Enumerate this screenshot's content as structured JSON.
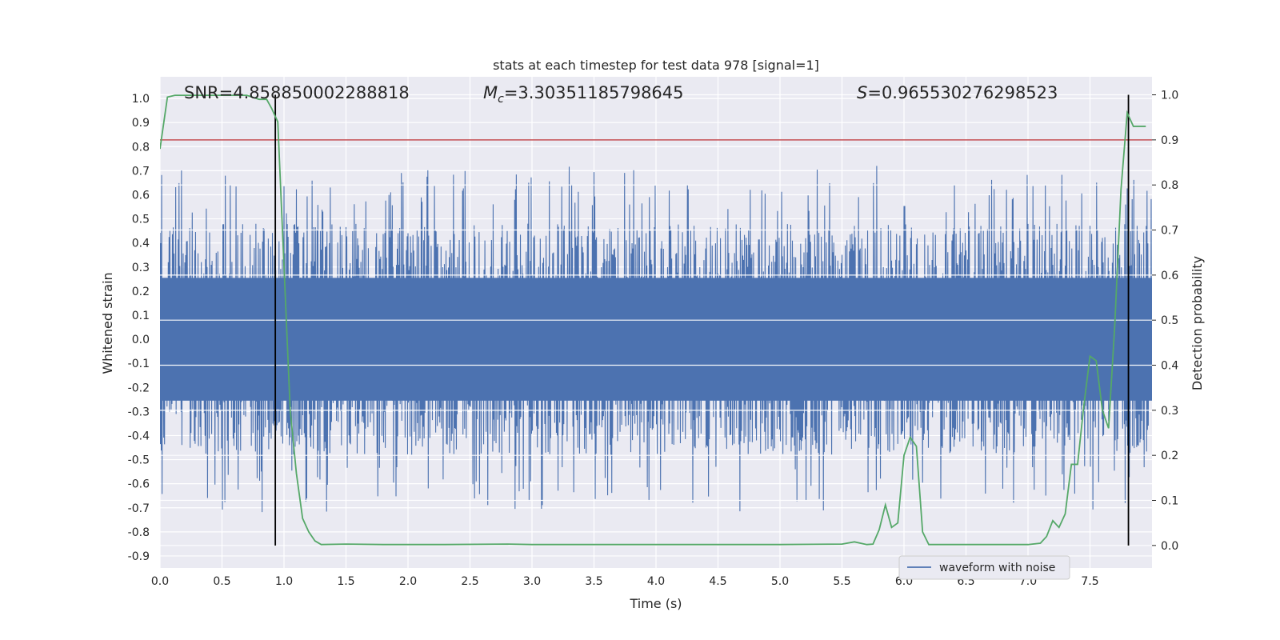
{
  "chart_data": {
    "type": "line",
    "title": "stats at each timestep for test data 978 [signal=1]",
    "xlabel": "Time (s)",
    "ylabel_left": "Whitened strain",
    "ylabel_right": "Detection probability",
    "xlim": [
      0.0,
      8.0
    ],
    "ylim_left": [
      -0.95,
      1.09
    ],
    "ylim_right": [
      -0.05,
      1.04
    ],
    "x_ticks": [
      "0.0",
      "0.5",
      "1.0",
      "1.5",
      "2.0",
      "2.5",
      "3.0",
      "3.5",
      "4.0",
      "4.5",
      "5.0",
      "5.5",
      "6.0",
      "6.5",
      "7.0",
      "7.5"
    ],
    "y_ticks_left": [
      "1.0",
      "0.9",
      "0.8",
      "0.7",
      "0.6",
      "0.5",
      "0.4",
      "0.3",
      "0.2",
      "0.1",
      "0.0",
      "-0.1",
      "-0.2",
      "-0.3",
      "-0.4",
      "-0.5",
      "-0.6",
      "-0.7",
      "-0.8",
      "-0.9"
    ],
    "y_ticks_right": [
      "1.0",
      "0.9",
      "0.8",
      "0.7",
      "0.6",
      "0.5",
      "0.4",
      "0.3",
      "0.2",
      "0.1",
      "0.0"
    ],
    "annotations": {
      "snr": "SNR=4.858850002288818",
      "mc_symbol": "M",
      "mc_subscript": "c",
      "mc_value": "=3.30351185798645",
      "s_symbol": "S",
      "s_value": "=0.965530276298523"
    },
    "threshold_probability": 0.9,
    "vertical_markers_time": [
      0.93,
      7.81
    ],
    "grid": true,
    "legend_position": "lower-right",
    "series": [
      {
        "name": "waveform with noise",
        "axis": "left",
        "color": "#4c72b0",
        "style": "dense-noise",
        "core_amplitude": 0.3,
        "peak_amplitude_max": 0.79,
        "peak_amplitude_min": -0.86
      },
      {
        "axis": "right",
        "color": "#55a868",
        "x": [
          0.0,
          0.06,
          0.12,
          0.2,
          0.4,
          0.6,
          0.7,
          0.8,
          0.86,
          0.9,
          0.95,
          1.0,
          1.05,
          1.1,
          1.15,
          1.2,
          1.25,
          1.3,
          1.5,
          1.8,
          2.3,
          2.8,
          3.0,
          4.0,
          5.0,
          5.5,
          5.6,
          5.7,
          5.75,
          5.8,
          5.85,
          5.9,
          5.95,
          6.0,
          6.05,
          6.1,
          6.15,
          6.2,
          6.25,
          6.3,
          6.5,
          7.0,
          7.1,
          7.15,
          7.2,
          7.25,
          7.3,
          7.35,
          7.4,
          7.45,
          7.5,
          7.55,
          7.6,
          7.65,
          7.7,
          7.75,
          7.8,
          7.85,
          7.9,
          7.95
        ],
        "values": [
          0.88,
          0.995,
          0.999,
          0.999,
          0.999,
          0.999,
          0.999,
          0.99,
          0.99,
          0.97,
          0.94,
          0.62,
          0.3,
          0.16,
          0.06,
          0.03,
          0.01,
          0.002,
          0.003,
          0.002,
          0.002,
          0.003,
          0.002,
          0.002,
          0.002,
          0.003,
          0.008,
          0.002,
          0.003,
          0.035,
          0.09,
          0.04,
          0.05,
          0.2,
          0.24,
          0.22,
          0.03,
          0.002,
          0.002,
          0.002,
          0.002,
          0.002,
          0.005,
          0.02,
          0.055,
          0.04,
          0.07,
          0.18,
          0.18,
          0.31,
          0.42,
          0.41,
          0.3,
          0.26,
          0.49,
          0.79,
          0.96,
          0.93,
          0.93,
          0.93
        ]
      }
    ]
  }
}
